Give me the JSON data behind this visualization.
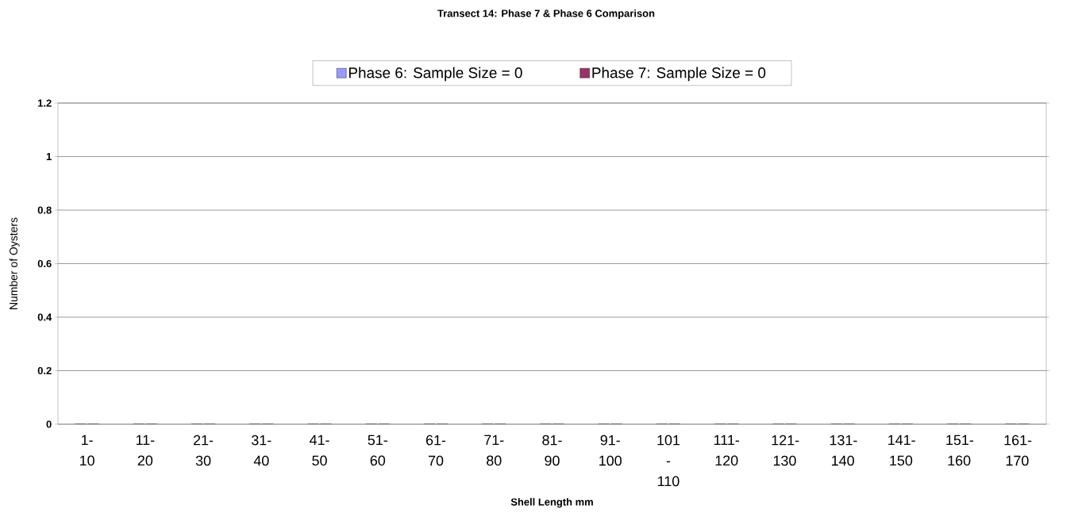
{
  "chart_data": {
    "type": "bar",
    "title": "Transect 14: Phase 7 & Phase 6 Comparison",
    "xlabel": "Shell Length mm",
    "ylabel": "Number of Oysters",
    "categories": [
      "1-10",
      "11-20",
      "21-30",
      "31-40",
      "41-50",
      "51-60",
      "61-70",
      "71-80",
      "81-90",
      "91-100",
      "101 - 110",
      "111-120",
      "121-130",
      "131-140",
      "141-150",
      "151-160",
      "161-170"
    ],
    "series": [
      {
        "name": "Phase 6: Sample Size = 0",
        "color": "#9999ff",
        "values": [
          0,
          0,
          0,
          0,
          0,
          0,
          0,
          0,
          0,
          0,
          0,
          0,
          0,
          0,
          0,
          0,
          0
        ]
      },
      {
        "name": "Phase 7: Sample Size = 0",
        "color": "#993366",
        "values": [
          0,
          0,
          0,
          0,
          0,
          0,
          0,
          0,
          0,
          0,
          0,
          0,
          0,
          0,
          0,
          0,
          0
        ]
      }
    ],
    "ylim": [
      0,
      1.2
    ],
    "yticks": [
      0,
      0.2,
      0.4,
      0.6,
      0.8,
      1,
      1.2
    ],
    "grid": "y",
    "legend": "top"
  }
}
